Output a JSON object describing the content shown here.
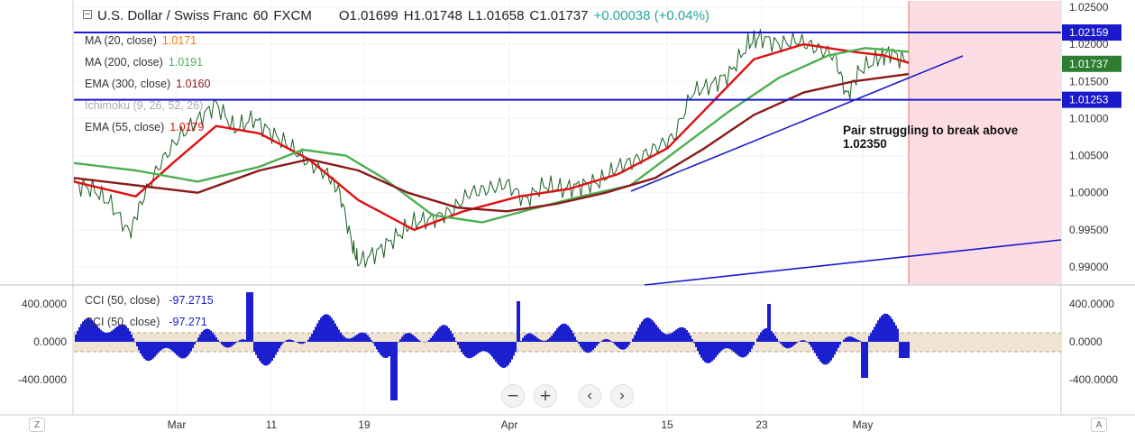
{
  "header": {
    "symbol": "U.S. Dollar / Swiss Franc",
    "interval": "60",
    "source": "FXCM",
    "open": "O1.01699",
    "high": "H1.01748",
    "low": "L1.01658",
    "close": "C1.01737",
    "change": "+0.00038 (+0.04%)"
  },
  "indicators": [
    {
      "label": "MA (20, close)",
      "value": "1.0171",
      "color": "#f57c00"
    },
    {
      "label": "MA (200, close)",
      "value": "1.0191",
      "color": "#4caf50"
    },
    {
      "label": "EMA (300, close)",
      "value": "1.0160",
      "color": "#8b1a1a"
    },
    {
      "label": "Ichimoku (9, 26, 52, 26)",
      "value": "",
      "color": "#aaaaaa"
    },
    {
      "label": "EMA (55, close)",
      "value": "1.0179",
      "color": "#e01010"
    }
  ],
  "annotation": "Pair struggling to break above\n1.02350",
  "price_axis": {
    "ticks": [
      "1.02500",
      "1.02000",
      "1.01500",
      "1.01000",
      "1.00500",
      "1.00000",
      "0.99500",
      "0.99000"
    ],
    "labels": [
      {
        "text": "1.02159",
        "color": "#1a1acc",
        "value": 1.02159
      },
      {
        "text": "1.01737",
        "color": "#2e7d32",
        "value": 1.01737
      },
      {
        "text": "1.01253",
        "color": "#1a1acc",
        "value": 1.01253
      }
    ]
  },
  "cci": {
    "legend": [
      {
        "label": "CCI (50, close)",
        "value": "-97.2715"
      },
      {
        "label": "CCI (50, close)",
        "value": "-97.271"
      }
    ],
    "ticks": [
      "400.0000",
      "0.0000",
      "-400.0000"
    ]
  },
  "time_axis": [
    "Mar",
    "11",
    "19",
    "Apr",
    "15",
    "23",
    "May"
  ],
  "controls": {
    "zoom_out": "−",
    "zoom_in": "+",
    "back": "‹",
    "forward": "›",
    "left_corner": "Z",
    "right_corner": "A"
  },
  "chart_data": {
    "type": "line",
    "title": "U.S. Dollar / Swiss Franc · 60 · FXCM",
    "ylim": [
      0.9876,
      1.0255
    ],
    "x_categories": [
      "Mar",
      "11",
      "19",
      "Apr",
      "15",
      "23",
      "May"
    ],
    "series": [
      {
        "name": "Price",
        "color": "#1b5e20",
        "points": [
          [
            0,
            1.0012
          ],
          [
            0.3,
            1.0005
          ],
          [
            0.6,
            0.9985
          ],
          [
            0.9,
            0.9945
          ],
          [
            1.1,
            0.999
          ],
          [
            1.4,
            1.004
          ],
          [
            1.7,
            1.0075
          ],
          [
            2.0,
            1.0098
          ],
          [
            2.3,
            1.012
          ],
          [
            2.6,
            1.0085
          ],
          [
            2.9,
            1.01
          ],
          [
            3.2,
            1.008
          ],
          [
            3.5,
            1.0062
          ],
          [
            3.8,
            1.004
          ],
          [
            4.1,
            1.0025
          ],
          [
            4.3,
            1.0
          ],
          [
            4.5,
            0.993
          ],
          [
            4.6,
            0.9905
          ],
          [
            4.9,
            0.992
          ],
          [
            5.2,
            0.994
          ],
          [
            5.5,
            0.996
          ],
          [
            5.8,
            0.9965
          ],
          [
            6.1,
            0.9975
          ],
          [
            6.4,
            1.0
          ],
          [
            6.7,
            1.0005
          ],
          [
            7.0,
            1.0012
          ],
          [
            7.3,
            0.999
          ],
          [
            7.6,
            1.001
          ],
          [
            7.9,
            1.0005
          ],
          [
            8.2,
            1.001
          ],
          [
            8.5,
            1.0015
          ],
          [
            8.8,
            1.0035
          ],
          [
            9.1,
            1.0045
          ],
          [
            9.4,
            1.006
          ],
          [
            9.7,
            1.0075
          ],
          [
            10.0,
            1.0135
          ],
          [
            10.3,
            1.0145
          ],
          [
            10.6,
            1.016
          ],
          [
            10.9,
            1.02
          ],
          [
            11.1,
            1.021
          ],
          [
            11.4,
            1.02
          ],
          [
            11.7,
            1.0205
          ],
          [
            12.0,
            1.0195
          ],
          [
            12.3,
            1.0185
          ],
          [
            12.5,
            1.013
          ],
          [
            12.7,
            1.0165
          ],
          [
            13.0,
            1.018
          ],
          [
            13.2,
            1.019
          ],
          [
            13.5,
            1.0174
          ]
        ]
      },
      {
        "name": "EMA (55, close)",
        "color": "#e01010",
        "points": [
          [
            0,
            1.0015
          ],
          [
            1,
            0.9995
          ],
          [
            1.6,
            1.004
          ],
          [
            2.3,
            1.009
          ],
          [
            3.0,
            1.008
          ],
          [
            3.8,
            1.0045
          ],
          [
            4.6,
            0.999
          ],
          [
            5.5,
            0.995
          ],
          [
            6.3,
            0.9975
          ],
          [
            7.2,
            0.9995
          ],
          [
            8.0,
            1.0005
          ],
          [
            8.8,
            1.0025
          ],
          [
            9.6,
            1.006
          ],
          [
            10.3,
            1.012
          ],
          [
            11.0,
            1.018
          ],
          [
            11.8,
            1.02
          ],
          [
            12.6,
            1.019
          ],
          [
            13.1,
            1.0185
          ],
          [
            13.5,
            1.0175
          ]
        ]
      },
      {
        "name": "MA (200, close)",
        "color": "#4caf50",
        "points": [
          [
            0,
            1.004
          ],
          [
            1,
            1.003
          ],
          [
            2,
            1.0015
          ],
          [
            3,
            1.0035
          ],
          [
            3.7,
            1.0058
          ],
          [
            4.4,
            1.005
          ],
          [
            5.0,
            1.002
          ],
          [
            5.8,
            0.997
          ],
          [
            6.6,
            0.996
          ],
          [
            7.4,
            0.9978
          ],
          [
            8.2,
            0.9995
          ],
          [
            9.0,
            1.001
          ],
          [
            9.8,
            1.006
          ],
          [
            10.6,
            1.011
          ],
          [
            11.4,
            1.0155
          ],
          [
            12.2,
            1.0185
          ],
          [
            12.8,
            1.0195
          ],
          [
            13.5,
            1.019
          ]
        ]
      },
      {
        "name": "EMA (300, close)",
        "color": "#8b1a1a",
        "points": [
          [
            0,
            1.002
          ],
          [
            1,
            1.001
          ],
          [
            2,
            1.0
          ],
          [
            3,
            1.003
          ],
          [
            3.8,
            1.0045
          ],
          [
            4.6,
            1.003
          ],
          [
            5.4,
            1.0
          ],
          [
            6.2,
            0.998
          ],
          [
            7.0,
            0.9975
          ],
          [
            7.8,
            0.9985
          ],
          [
            8.6,
            1.0
          ],
          [
            9.4,
            1.002
          ],
          [
            10.2,
            1.006
          ],
          [
            11.0,
            1.0105
          ],
          [
            11.8,
            1.0135
          ],
          [
            12.6,
            1.015
          ],
          [
            13.5,
            1.016
          ]
        ]
      }
    ]
  }
}
